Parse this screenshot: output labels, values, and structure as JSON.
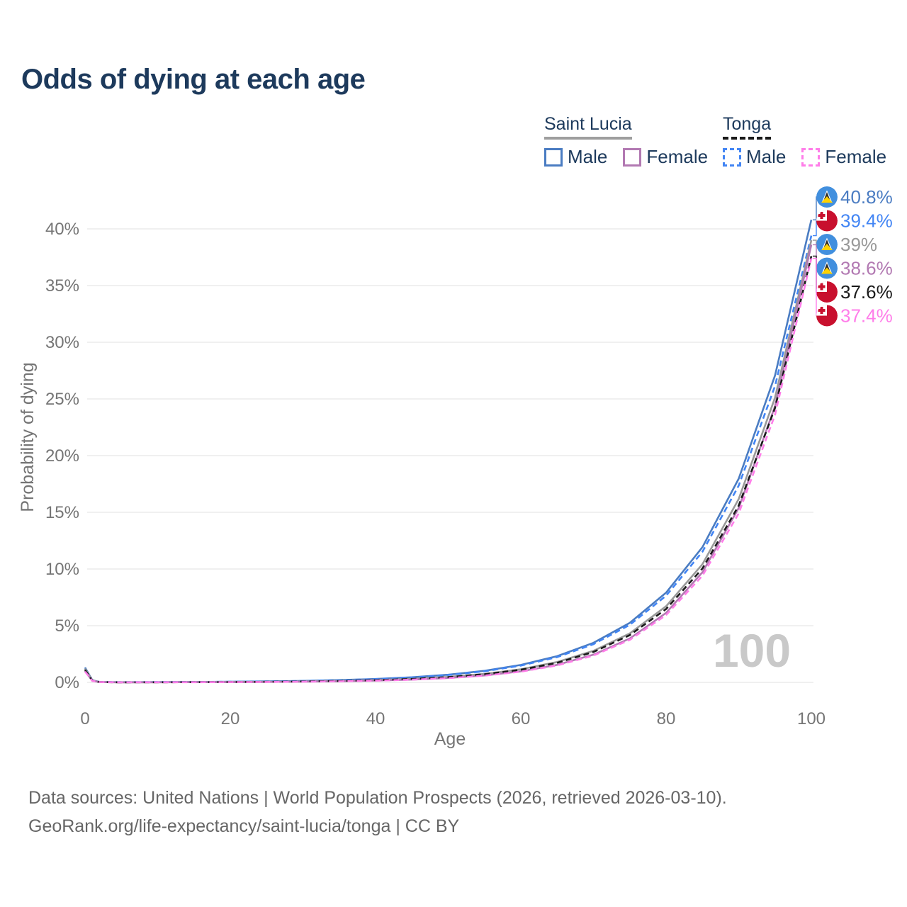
{
  "title": "Odds of dying at each age",
  "watermark": "100",
  "colors": {
    "title_text": "#1d3a5c",
    "axis_text": "#757575",
    "gridline": "#ececec",
    "watermark": "#c9c9c9",
    "saint_lucia_male": "#4a7cc2",
    "tonga_male": "#4285f4",
    "saint_lucia_combined": "#999999",
    "saint_lucia_female": "#b279b2",
    "tonga_combined": "#1a1a1a",
    "tonga_female": "#ff7de9"
  },
  "legend": {
    "groups": [
      {
        "name": "Saint Lucia",
        "line_style": "solid",
        "line_color": "#9e9e9e",
        "items": [
          {
            "label": "Male",
            "color": "#4a7cc2",
            "dash": false
          },
          {
            "label": "Female",
            "color": "#b279b2",
            "dash": false
          }
        ]
      },
      {
        "name": "Tonga",
        "line_style": "dashed",
        "line_color": "#1a1a1a",
        "items": [
          {
            "label": "Male",
            "color": "#4285f4",
            "dash": true
          },
          {
            "label": "Female",
            "color": "#ff7de9",
            "dash": true
          }
        ]
      }
    ]
  },
  "footer": {
    "line1": "Data sources: United Nations | World Population Prospects (2026, retrieved 2026-03-10).",
    "line2": "GeoRank.org/life-expectancy/saint-lucia/tonga | CC BY"
  },
  "chart_data": {
    "type": "line",
    "title": "Odds of dying at each age",
    "xlabel": "Age",
    "ylabel": "Probability of dying",
    "xlim": [
      0,
      100
    ],
    "ylim_percent": [
      0,
      45
    ],
    "grid": "horizontal",
    "x_ticks": [
      0,
      20,
      40,
      60,
      80,
      100
    ],
    "x_tick_labels": [
      "0",
      "20",
      "40",
      "60",
      "80",
      "100"
    ],
    "y_ticks_percent": [
      0,
      5,
      10,
      15,
      20,
      25,
      30,
      35,
      40
    ],
    "y_tick_labels": [
      "0%",
      "5%",
      "10%",
      "15%",
      "20%",
      "25%",
      "30%",
      "35%",
      "40%"
    ],
    "ages": [
      0,
      1,
      2,
      5,
      10,
      15,
      20,
      25,
      30,
      35,
      40,
      45,
      50,
      55,
      60,
      65,
      70,
      75,
      80,
      85,
      90,
      95,
      100
    ],
    "series": [
      {
        "id": "saint-lucia-male",
        "name": "Saint Lucia Male",
        "country": "saint-lucia",
        "sex": "male",
        "color": "#4a7cc2",
        "dash": false,
        "end_label": "40.8%",
        "end_value": 40.8,
        "values_percent": [
          1.311,
          0.188,
          0.037,
          0.017,
          0.026,
          0.038,
          0.058,
          0.087,
          0.131,
          0.198,
          0.298,
          0.449,
          0.676,
          1.019,
          1.536,
          2.314,
          3.486,
          5.253,
          7.915,
          11.926,
          17.97,
          27.08,
          40.8
        ]
      },
      {
        "id": "tonga-male",
        "name": "Tonga Male",
        "country": "tonga",
        "sex": "male",
        "color": "#4285f4",
        "dash": true,
        "end_label": "39.4%",
        "end_value": 39.4,
        "values_percent": [
          1.211,
          0.174,
          0.035,
          0.016,
          0.025,
          0.037,
          0.056,
          0.084,
          0.127,
          0.191,
          0.288,
          0.434,
          0.653,
          0.984,
          1.483,
          2.234,
          3.367,
          5.073,
          7.643,
          11.517,
          17.354,
          26.148,
          39.4
        ]
      },
      {
        "id": "saint-lucia-combined",
        "name": "Saint Lucia",
        "country": "saint-lucia",
        "sex": "both",
        "color": "#999999",
        "dash": false,
        "end_label": "39%",
        "end_value": 39.0,
        "values_percent": [
          1.206,
          0.168,
          0.029,
          0.009,
          0.014,
          0.022,
          0.034,
          0.053,
          0.082,
          0.128,
          0.199,
          0.308,
          0.479,
          0.743,
          1.154,
          1.792,
          2.783,
          4.321,
          6.71,
          10.418,
          16.177,
          25.118,
          39.0
        ]
      },
      {
        "id": "saint-lucia-female",
        "name": "Saint Lucia Female",
        "country": "saint-lucia",
        "sex": "female",
        "color": "#b279b2",
        "dash": false,
        "end_label": "38.6%",
        "end_value": 38.6,
        "values_percent": [
          1.004,
          0.139,
          0.023,
          0.006,
          0.01,
          0.016,
          0.025,
          0.039,
          0.062,
          0.098,
          0.155,
          0.245,
          0.388,
          0.615,
          0.974,
          1.542,
          2.443,
          3.87,
          6.13,
          9.711,
          15.383,
          24.367,
          38.6
        ]
      },
      {
        "id": "tonga-combined",
        "name": "Tonga",
        "country": "tonga",
        "sex": "both",
        "color": "#1a1a1a",
        "dash": true,
        "end_label": "37.6%",
        "end_value": 37.6,
        "values_percent": [
          1.106,
          0.155,
          0.027,
          0.009,
          0.014,
          0.021,
          0.033,
          0.051,
          0.079,
          0.123,
          0.191,
          0.297,
          0.462,
          0.717,
          1.113,
          1.728,
          2.683,
          4.166,
          6.469,
          10.044,
          15.596,
          24.216,
          37.6
        ]
      },
      {
        "id": "tonga-female",
        "name": "Tonga Female",
        "country": "tonga",
        "sex": "female",
        "color": "#ff7de9",
        "dash": true,
        "end_label": "37.4%",
        "end_value": 37.4,
        "values_percent": [
          0.954,
          0.133,
          0.022,
          0.006,
          0.01,
          0.015,
          0.024,
          0.038,
          0.06,
          0.095,
          0.15,
          0.237,
          0.376,
          0.595,
          0.943,
          1.494,
          2.367,
          3.75,
          5.94,
          9.409,
          14.905,
          23.61,
          37.4
        ]
      }
    ]
  }
}
